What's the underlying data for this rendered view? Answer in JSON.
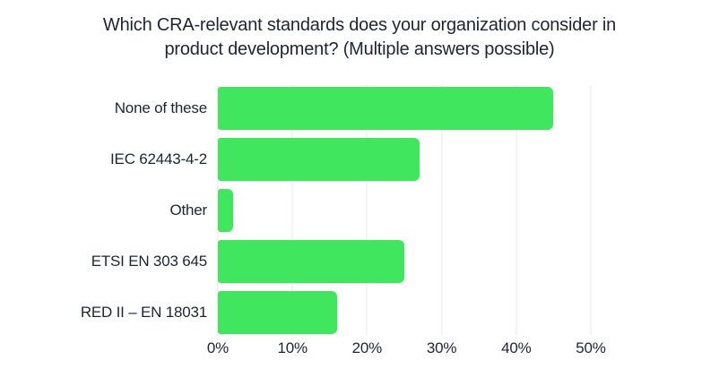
{
  "chart_data": {
    "type": "bar",
    "orientation": "horizontal",
    "title": "Which CRA-relevant standards does your organization consider in product development? (Multiple answers possible)",
    "title_lines": [
      "Which CRA-relevant standards does your organization consider in",
      "product development? (Multiple answers possible)"
    ],
    "categories": [
      "None of these",
      "IEC 62443-4-2",
      "Other",
      "ETSI EN 303 645",
      "RED II – EN 18031"
    ],
    "values": [
      45,
      27,
      2,
      25,
      16
    ],
    "unit": "%",
    "xlabel": "",
    "ylabel": "",
    "xlim": [
      0,
      50
    ],
    "x_ticks": [
      "0%",
      "10%",
      "20%",
      "30%",
      "40%",
      "50%"
    ],
    "x_tick_values": [
      0,
      10,
      20,
      30,
      40,
      50
    ],
    "grid": "vertical-gridlines-on",
    "legend": "none",
    "colors": {
      "bar": "#3fe65e",
      "text": "#1f2433",
      "gridline": "#e9e9eb",
      "background": "#ffffff"
    }
  }
}
